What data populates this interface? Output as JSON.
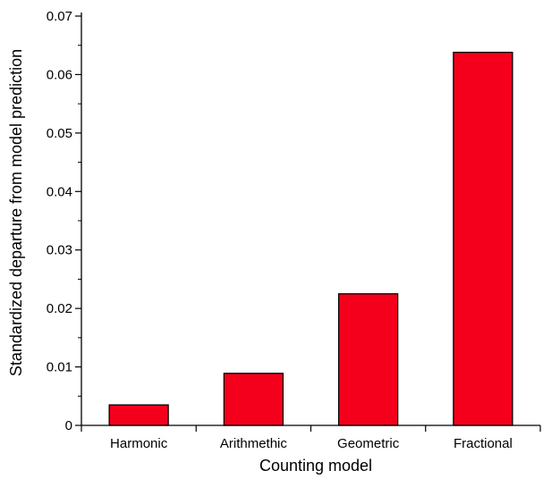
{
  "chart_data": {
    "type": "bar",
    "categories": [
      "Harmonic",
      "Arithmethic",
      "Geometric",
      "Fractional"
    ],
    "values": [
      0.0035,
      0.0089,
      0.0225,
      0.0638
    ],
    "title": "",
    "xlabel": "Counting model",
    "ylabel": "Standardized departure from model prediction",
    "ylim": [
      0,
      0.07
    ],
    "yticks": [
      0,
      0.01,
      0.02,
      0.03,
      0.04,
      0.05,
      0.06,
      0.07
    ],
    "ytick_labels": [
      "0",
      "0.01",
      "0.02",
      "0.03",
      "0.04",
      "0.05",
      "0.06",
      "0.07"
    ],
    "bar_color": "#f5001c",
    "grid": false,
    "legend": "none"
  }
}
